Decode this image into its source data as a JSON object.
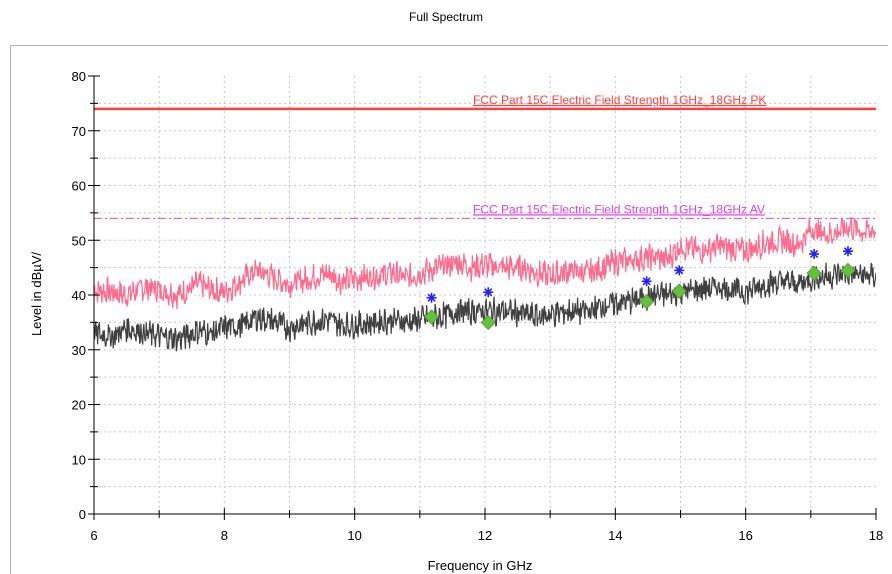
{
  "chart_data": {
    "type": "line",
    "title": "Full Spectrum",
    "xlabel": "Frequency in GHz",
    "ylabel": "Level in dBµV/",
    "xlim": [
      6,
      18
    ],
    "ylim": [
      0,
      80
    ],
    "x_ticks": [
      "6",
      "8",
      "10",
      "12",
      "14",
      "16",
      "18"
    ],
    "y_ticks": [
      "0",
      "10",
      "20",
      "30",
      "40",
      "50",
      "60",
      "70",
      "80"
    ],
    "grid": "dashed",
    "limit_lines": [
      {
        "name": "FCC Part 15C Electric Field Strength 1GHz_18GHz PK",
        "value": 74,
        "color": "#ff4040",
        "style": "solid"
      },
      {
        "name": "FCC Part 15C Electric Field Strength 1GHz_18GHz AV",
        "value": 54,
        "color": "#e040e0",
        "style": "dash-dot"
      }
    ],
    "series": [
      {
        "color": "#ff6b8e",
        "style": "noisy-line",
        "x": [
          6.0,
          6.3,
          6.5,
          6.8,
          7.0,
          7.3,
          7.6,
          7.8,
          8.0,
          8.3,
          8.5,
          8.8,
          9.0,
          9.3,
          9.6,
          9.8,
          10.0,
          10.3,
          10.6,
          10.8,
          11.0,
          11.3,
          11.6,
          11.8,
          12.0,
          12.3,
          12.6,
          12.8,
          13.0,
          13.3,
          13.6,
          13.8,
          14.0,
          14.3,
          14.6,
          14.8,
          15.0,
          15.3,
          15.6,
          15.8,
          16.0,
          16.3,
          16.6,
          16.8,
          17.0,
          17.3,
          17.6,
          17.8,
          18.0
        ],
        "y": [
          41,
          40.5,
          40,
          41.5,
          41,
          40,
          42,
          41,
          40.5,
          43,
          44.5,
          43,
          42,
          43,
          44,
          42.5,
          43,
          43.5,
          44,
          43,
          44,
          45,
          46,
          45,
          45.5,
          45,
          45,
          44,
          43.5,
          44.5,
          44,
          45,
          46,
          46.5,
          47,
          46.5,
          49,
          48,
          49,
          48.5,
          48,
          49.5,
          50,
          49,
          52,
          51,
          52.5,
          51.5,
          52
        ]
      },
      {
        "color": "#404040",
        "style": "noisy-line",
        "x": [
          6.0,
          6.3,
          6.5,
          6.8,
          7.0,
          7.3,
          7.6,
          7.8,
          8.0,
          8.3,
          8.5,
          8.8,
          9.0,
          9.3,
          9.6,
          9.8,
          10.0,
          10.3,
          10.6,
          10.8,
          11.0,
          11.3,
          11.6,
          11.8,
          12.0,
          12.3,
          12.6,
          12.8,
          13.0,
          13.3,
          13.6,
          13.8,
          14.0,
          14.3,
          14.6,
          14.8,
          15.0,
          15.3,
          15.6,
          15.8,
          16.0,
          16.3,
          16.6,
          16.8,
          17.0,
          17.3,
          17.6,
          17.8,
          18.0
        ],
        "y": [
          33,
          32.5,
          34,
          33,
          32.5,
          32,
          33.5,
          33,
          34,
          34.5,
          36,
          35,
          34,
          35,
          35.5,
          34.5,
          34.5,
          35,
          35.5,
          35,
          35.5,
          36,
          37,
          37,
          37,
          37,
          36.5,
          36,
          36.5,
          37,
          37,
          38,
          38.5,
          39,
          40,
          40,
          40.5,
          41,
          41.5,
          41,
          40.5,
          42,
          42.5,
          42,
          43,
          43.5,
          44,
          43.5,
          43.5
        ]
      }
    ],
    "markers": [
      {
        "shape": "asterisk",
        "color": "#2020ff",
        "x": [
          11.18,
          12.05,
          14.48,
          14.98,
          17.05,
          17.57
        ],
        "y": [
          39.5,
          40.5,
          42.5,
          44.5,
          47.5,
          48
        ]
      },
      {
        "shape": "diamond",
        "color": "#66c040",
        "x": [
          11.18,
          12.05,
          14.48,
          14.98,
          17.05,
          17.57
        ],
        "y": [
          36,
          35,
          38.8,
          40.7,
          44,
          44.5
        ]
      }
    ]
  }
}
